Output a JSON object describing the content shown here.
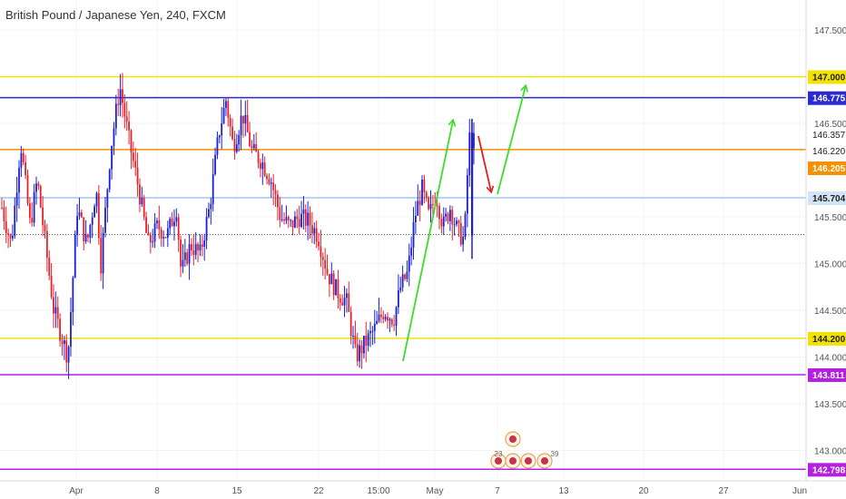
{
  "header": {
    "title": "British Pound / Japanese Yen, 240, FXCM"
  },
  "colors": {
    "up_candle": "#1a1fd6",
    "down_candle": "#e8202a",
    "yellow_line": "#f2e200",
    "navy_line": "#2a2acf",
    "orange_line": "#f59000",
    "lightblue_line": "#b9d4f5",
    "magenta_line": "#b320e0",
    "green_arrow": "#3cdc2c",
    "red_arrow": "#e01f1f"
  },
  "chart_data": {
    "type": "candlestick",
    "symbol": "British Pound / Japanese Yen",
    "timeframe": "240",
    "source": "FXCM",
    "ylim": [
      142.7,
      147.9
    ],
    "y_ticks": [
      "147.500",
      "146.500",
      "145.500",
      "145.000",
      "144.500",
      "144.000",
      "143.500",
      "143.000"
    ],
    "x_ticks": [
      "Apr",
      "8",
      "15",
      "22",
      "15:00",
      "May",
      "7",
      "13",
      "20",
      "27",
      "Jun"
    ],
    "horizontal_levels": [
      {
        "price": 147.0,
        "label": "147.000",
        "color": "yellow"
      },
      {
        "price": 146.775,
        "label": "146.775",
        "color": "navy"
      },
      {
        "price": 146.357,
        "label": "146.357",
        "color": "none"
      },
      {
        "price": 146.22,
        "label": "146.220",
        "color": "orange"
      },
      {
        "price": 146.205,
        "label": "146.205",
        "color": "orange-filled"
      },
      {
        "price": 145.704,
        "label": "145.704",
        "color": "lightblue"
      },
      {
        "price": 144.2,
        "label": "144.200",
        "color": "yellow"
      },
      {
        "price": 143.811,
        "label": "143.811",
        "color": "magenta"
      },
      {
        "price": 142.798,
        "label": "142.798",
        "color": "magenta"
      }
    ],
    "current_price_dotted": 145.31,
    "price_path": [
      [
        0,
        145.6
      ],
      [
        0.02,
        145.2
      ],
      [
        0.04,
        146.3
      ],
      [
        0.06,
        145.4
      ],
      [
        0.075,
        145.9
      ],
      [
        0.09,
        145.3
      ],
      [
        0.11,
        144.5
      ],
      [
        0.14,
        144.0
      ],
      [
        0.16,
        145.6
      ],
      [
        0.18,
        145.2
      ],
      [
        0.2,
        145.8
      ],
      [
        0.21,
        145.0
      ],
      [
        0.23,
        146.2
      ],
      [
        0.25,
        146.9
      ],
      [
        0.27,
        146.3
      ],
      [
        0.29,
        145.8
      ],
      [
        0.31,
        145.2
      ],
      [
        0.33,
        145.4
      ],
      [
        0.35,
        145.3
      ],
      [
        0.37,
        145.6
      ],
      [
        0.38,
        144.9
      ],
      [
        0.4,
        145.2
      ],
      [
        0.42,
        145.1
      ],
      [
        0.44,
        145.6
      ],
      [
        0.46,
        146.4
      ],
      [
        0.475,
        146.75
      ],
      [
        0.49,
        146.25
      ],
      [
        0.51,
        146.6
      ],
      [
        0.53,
        146.2
      ],
      [
        0.55,
        146.1
      ],
      [
        0.57,
        145.9
      ],
      [
        0.59,
        145.5
      ],
      [
        0.61,
        145.4
      ],
      [
        0.63,
        145.5
      ],
      [
        0.65,
        145.45
      ],
      [
        0.67,
        145.3
      ],
      [
        0.69,
        144.9
      ],
      [
        0.71,
        144.7
      ],
      [
        0.73,
        144.6
      ],
      [
        0.75,
        144.0
      ],
      [
        0.77,
        144.15
      ],
      [
        0.79,
        144.3
      ],
      [
        0.81,
        144.5
      ],
      [
        0.83,
        144.4
      ],
      [
        0.845,
        144.75
      ],
      [
        0.86,
        144.9
      ],
      [
        0.875,
        145.5
      ],
      [
        0.89,
        145.8
      ],
      [
        0.905,
        145.5
      ],
      [
        0.92,
        145.75
      ],
      [
        0.935,
        145.4
      ],
      [
        0.95,
        145.6
      ],
      [
        0.965,
        145.35
      ],
      [
        0.98,
        145.25
      ],
      [
        0.99,
        146.35
      ],
      [
        1.0,
        146.3
      ]
    ],
    "annotations": [
      {
        "type": "arrow",
        "color": "green",
        "from": [
          "Apr 29",
          143.9
        ],
        "to": [
          "May 3",
          146.5
        ]
      },
      {
        "type": "arrow",
        "color": "red",
        "from": [
          "May 4",
          146.4
        ],
        "to": [
          "May 6",
          145.75
        ]
      },
      {
        "type": "arrow",
        "color": "green",
        "from": [
          "May 6",
          145.9
        ],
        "to": [
          "May 9",
          146.85
        ]
      }
    ],
    "event_markers": [
      "23",
      "39"
    ]
  }
}
